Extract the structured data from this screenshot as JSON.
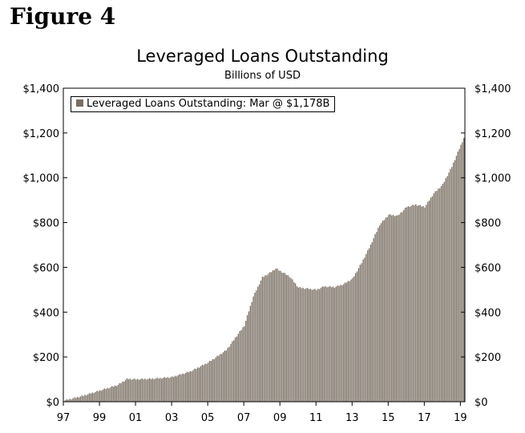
{
  "figure_label": "Figure 4",
  "chart_data": {
    "type": "bar",
    "title": "Leveraged Loans Outstanding",
    "subtitle": "Billions of USD",
    "ylim": [
      0,
      1400
    ],
    "y_ticks": [
      "$0",
      "$200",
      "$400",
      "$600",
      "$800",
      "$1,000",
      "$1,200",
      "$1,400"
    ],
    "y_tick_values": [
      0,
      200,
      400,
      600,
      800,
      1000,
      1200,
      1400
    ],
    "x_ticks": [
      "97",
      "99",
      "01",
      "03",
      "05",
      "07",
      "09",
      "11",
      "13",
      "15",
      "17",
      "19"
    ],
    "x_tick_years": [
      1997,
      1999,
      2001,
      2003,
      2005,
      2007,
      2009,
      2011,
      2013,
      2015,
      2017,
      2019
    ],
    "xlim_years": [
      1997,
      2019.25
    ],
    "grid": false,
    "legend_position": "top-left",
    "series": [
      {
        "name": "Leveraged Loans Outstanding: Mar @ $1,178B",
        "color": "#7a6f63",
        "frequency": "monthly",
        "start": "1997-01",
        "points": [
          [
            "1997-01",
            5
          ],
          [
            "1998-01",
            25
          ],
          [
            "1999-01",
            50
          ],
          [
            "2000-01",
            75
          ],
          [
            "2000-07",
            102
          ],
          [
            "2001-01",
            100
          ],
          [
            "2002-01",
            103
          ],
          [
            "2003-01",
            110
          ],
          [
            "2004-01",
            135
          ],
          [
            "2005-01",
            175
          ],
          [
            "2006-01",
            230
          ],
          [
            "2007-01",
            340
          ],
          [
            "2007-07",
            470
          ],
          [
            "2008-01",
            555
          ],
          [
            "2008-07",
            580
          ],
          [
            "2008-10",
            595
          ],
          [
            "2009-07",
            560
          ],
          [
            "2010-01",
            510
          ],
          [
            "2010-07",
            505
          ],
          [
            "2011-01",
            500
          ],
          [
            "2011-06",
            515
          ],
          [
            "2012-01",
            512
          ],
          [
            "2012-07",
            525
          ],
          [
            "2013-01",
            550
          ],
          [
            "2013-07",
            620
          ],
          [
            "2014-01",
            700
          ],
          [
            "2014-07",
            790
          ],
          [
            "2015-01",
            835
          ],
          [
            "2015-07",
            830
          ],
          [
            "2016-01",
            870
          ],
          [
            "2016-07",
            880
          ],
          [
            "2017-01",
            870
          ],
          [
            "2017-07",
            930
          ],
          [
            "2018-01",
            970
          ],
          [
            "2018-07",
            1050
          ],
          [
            "2019-03",
            1178
          ]
        ]
      }
    ]
  }
}
